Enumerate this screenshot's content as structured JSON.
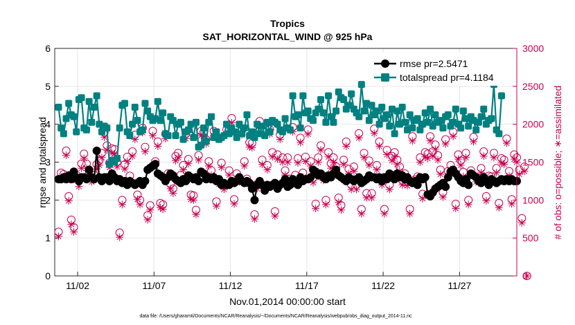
{
  "chart_data": {
    "type": "line",
    "title": "Tropics",
    "subtitle": "SAT_HORIZONTAL_WIND @ 925 hPa",
    "xlabel": "Nov.01,2014 00:00:00 start",
    "ylabel_left": "rmse and totalspread",
    "ylabel_right": "# of obs: o=possible; ∗=assimilated",
    "footnote": "data file: /Users/gharamti/Documents/NCAR/Reanalysis/~/Documents/NCAR/Reanalysis/webpub/obs_diag_output_2014-11.nc",
    "xlim": [
      0.0,
      30.25
    ],
    "ylim_left": [
      0,
      6
    ],
    "ylim_right": [
      0,
      3000
    ],
    "xticks": [
      1.5,
      6.5,
      11.5,
      16.5,
      21.5,
      26.5
    ],
    "xtick_labels": [
      "11/02",
      "11/07",
      "11/12",
      "11/17",
      "11/22",
      "11/27"
    ],
    "yticks_left": [
      "0",
      "1",
      "2",
      "3",
      "4",
      "5",
      "6"
    ],
    "yticks_right": [
      "0",
      "500",
      "1000",
      "1500",
      "2000",
      "2500",
      "3000"
    ],
    "legend": [
      {
        "label": "rmse pr=2.5471",
        "color": "#000000"
      },
      {
        "label": "totalspread pr=4.1184",
        "color": "#008080"
      }
    ],
    "colors": {
      "rmse": "#000000",
      "spread": "#008080",
      "obs": "#c8004f",
      "right_axis": "#c8004f"
    },
    "rmse": [
      2.55,
      2.55,
      2.6,
      2.55,
      2.65,
      2.55,
      2.75,
      2.6,
      2.5,
      2.6,
      2.6,
      2.55,
      2.8,
      2.6,
      2.55,
      3.3,
      2.6,
      2.5,
      2.6,
      2.6,
      2.5,
      2.7,
      2.6,
      2.5,
      2.55,
      2.45,
      2.5,
      2.4,
      2.5,
      2.45,
      2.4,
      2.45,
      2.5,
      2.4,
      2.5,
      2.8,
      2.85,
      2.9,
      2.95,
      2.7,
      2.65,
      2.6,
      2.5,
      2.6,
      2.7,
      2.65,
      2.55,
      2.5,
      2.45,
      2.55,
      2.5,
      2.65,
      2.6,
      2.55,
      2.6,
      2.5,
      2.75,
      2.7,
      2.55,
      2.6,
      2.55,
      2.6,
      2.5,
      2.55,
      2.4,
      2.45,
      2.4,
      2.4,
      2.5,
      2.45,
      2.5,
      2.6,
      2.5,
      2.45,
      2.5,
      2.45,
      2.3,
      2.0,
      2.4,
      2.5,
      2.4,
      2.25,
      2.4,
      2.35,
      2.4,
      2.45,
      2.3,
      2.4,
      2.45,
      2.55,
      2.35,
      2.4,
      2.55,
      2.45,
      2.4,
      2.6,
      2.5,
      2.55,
      2.55,
      2.6,
      2.8,
      2.75,
      2.65,
      2.7,
      2.6,
      2.55,
      2.65,
      2.6,
      2.7,
      2.8,
      2.65,
      2.6,
      2.55,
      2.5,
      2.6,
      2.55,
      2.5,
      2.55,
      2.6,
      2.45,
      2.5,
      2.55,
      2.65,
      2.6,
      2.6,
      2.55,
      2.6,
      2.5,
      2.6,
      2.55,
      2.7,
      2.65,
      2.55,
      2.7,
      2.6,
      2.65,
      2.55,
      2.6,
      2.5,
      2.45,
      2.5,
      2.4,
      2.6,
      2.55,
      2.6,
      2.15,
      2.1,
      2.2,
      2.3,
      2.35,
      2.4,
      2.45,
      2.35,
      2.6,
      2.75,
      2.8,
      2.7,
      2.6,
      2.5,
      2.45,
      2.55,
      2.4,
      2.7,
      2.65,
      2.6,
      2.5,
      2.45,
      2.6,
      2.5,
      2.4,
      2.55,
      2.5,
      2.45,
      2.5,
      2.55,
      2.5,
      2.55,
      2.5,
      2.55,
      2.5,
      2.5
    ],
    "totalspread": [
      4.45,
      3.9,
      3.75,
      4.15,
      4.55,
      4.25,
      4.2,
      3.8,
      4.65,
      4.7,
      3.9,
      3.85,
      4.6,
      4.05,
      4.45,
      4.75,
      4.0,
      3.8,
      3.95,
      3.9,
      2.95,
      3.05,
      3.0,
      3.1,
      3.9,
      4.5,
      4.55,
      3.8,
      3.7,
      4.0,
      4.45,
      4.1,
      3.8,
      3.85,
      4.55,
      4.35,
      4.2,
      4.1,
      4.15,
      4.6,
      4.1,
      4.3,
      3.75,
      3.7,
      4.2,
      4.1,
      3.7,
      4.0,
      4.05,
      3.6,
      3.8,
      3.85,
      4.0,
      3.65,
      4.05,
      3.4,
      3.45,
      3.9,
      3.55,
      4.05,
      4.2,
      3.65,
      3.8,
      3.6,
      3.65,
      3.7,
      4.0,
      3.75,
      3.9,
      3.8,
      3.65,
      4.0,
      3.75,
      3.9,
      4.25,
      3.7,
      3.8,
      3.65,
      4.0,
      3.75,
      3.95,
      3.7,
      4.05,
      3.8,
      4.1,
      4.05,
      4.0,
      3.85,
      3.8,
      4.15,
      3.9,
      3.85,
      4.75,
      4.2,
      4.25,
      3.9,
      4.75,
      4.3,
      4.35,
      4.15,
      4.1,
      4.3,
      4.4,
      4.65,
      4.3,
      4.05,
      4.75,
      4.2,
      4.05,
      4.35,
      4.85,
      4.7,
      4.65,
      4.4,
      4.5,
      4.8,
      4.4,
      4.3,
      4.2,
      5.05,
      4.35,
      4.55,
      4.1,
      4.5,
      4.25,
      4.35,
      4.0,
      4.45,
      4.15,
      4.25,
      3.95,
      4.4,
      3.75,
      4.35,
      4.0,
      4.45,
      4.05,
      3.85,
      4.25,
      3.9,
      4.1,
      4.15,
      3.85,
      4.0,
      4.3,
      4.05,
      4.4,
      3.95,
      4.25,
      4.05,
      4.1,
      3.9,
      4.2,
      4.25,
      3.95,
      4.05,
      4.4,
      4.0,
      3.9,
      4.35,
      4.15,
      3.95,
      4.2,
      4.1,
      3.85,
      4.05,
      4.2,
      4.4,
      4.0,
      4.1,
      4.15,
      5.05,
      3.85,
      3.75,
      4.75
    ],
    "obs_possible": [
      580,
      1360,
      1340,
      1650,
      1050,
      740,
      640,
      1330,
      1250,
      1480,
      1610,
      1480,
      1380,
      1300,
      1330,
      1470,
      1520,
      1620,
      1890,
      1720,
      1490,
      1680,
      1670,
      1500,
      570,
      1000,
      1470,
      1570,
      1320,
      1640,
      1860,
      1070,
      1000,
      1950,
      1700,
      800,
      930,
      1910,
      1510,
      1770,
      960,
      940,
      1870,
      1350,
      1210,
      1150,
      1580,
      1620,
      1330,
      1460,
      1870,
      1540,
      1070,
      1060,
      870,
      1590,
      1910,
      1900,
      1800,
      1510,
      1390,
      1910,
      980,
      1270,
      1490,
      1200,
      1930,
      1390,
      2080,
      1010,
      1350,
      1300,
      1920,
      1510,
      1280,
      1760,
      1750,
      810,
      1210,
      2040,
      1530,
      1180,
      1460,
      1930,
      1630,
      850,
      1600,
      1860,
      1560,
      1390,
      1560,
      1280,
      1960,
      1330,
      1550,
      1820,
      1360,
      1570,
      1930,
      1510,
      1290,
      950,
      1560,
      1720,
      1320,
      1000,
      1630,
      1480,
      1560,
      1440,
      1030,
      930,
      1530,
      1770,
      1410,
      1200,
      1440,
      1200,
      1880,
      880,
      1620,
      1090,
      1520,
      1090,
      1940,
      1460,
      1770,
      1260,
      880,
      1660,
      1200,
      1580,
      1630,
      1530,
      1440,
      1260,
      1350,
      1250,
      880,
      1840,
      1270,
      1310,
      1560,
      1080,
      1630,
      1610,
      1840,
      1640,
      1730,
      1590,
      1400,
      1100,
      1800,
      1380,
      1460,
      1900,
      950,
      1600,
      1520,
      1370,
      1620,
      1000,
      1390,
      1830,
      1300,
      1290,
      1420,
      1640,
      1050,
      1320,
      1310,
      1620,
      1420,
      960,
      1550,
      1530,
      1810,
      1380,
      1010,
      1600,
      1560,
      1400,
      760,
      1440,
      0
    ],
    "obs_assimilated": [
      520,
      1270,
      1310,
      1590,
      990,
      680,
      580,
      1260,
      1180,
      1420,
      1550,
      1420,
      1310,
      1240,
      1270,
      1410,
      1460,
      1560,
      1830,
      1660,
      1430,
      1620,
      1610,
      1440,
      510,
      940,
      1410,
      1510,
      1260,
      1580,
      1800,
      1010,
      940,
      1890,
      1640,
      740,
      870,
      1850,
      1450,
      1710,
      900,
      880,
      1810,
      1290,
      1150,
      1090,
      1520,
      1560,
      1270,
      1400,
      1810,
      1480,
      1010,
      1000,
      810,
      1530,
      1850,
      1840,
      1740,
      1450,
      1330,
      1850,
      920,
      1210,
      1430,
      1140,
      1870,
      1330,
      2020,
      950,
      1290,
      1240,
      1860,
      1450,
      1220,
      1700,
      1690,
      750,
      1150,
      1980,
      1470,
      1120,
      1400,
      1870,
      1570,
      790,
      1540,
      1800,
      1500,
      1330,
      1500,
      1220,
      1900,
      1270,
      1490,
      1760,
      1300,
      1510,
      1870,
      1450,
      1230,
      890,
      1500,
      1660,
      1260,
      940,
      1570,
      1420,
      1500,
      1380,
      970,
      870,
      1470,
      1710,
      1350,
      1140,
      1380,
      1140,
      1820,
      820,
      1560,
      1030,
      1460,
      1030,
      1880,
      1400,
      1710,
      1200,
      820,
      1600,
      1140,
      1520,
      1570,
      1470,
      1380,
      1200,
      1290,
      1190,
      820,
      1780,
      1210,
      1250,
      1500,
      1020,
      1570,
      1550,
      1780,
      1580,
      1670,
      1530,
      1340,
      1040,
      1740,
      1320,
      1400,
      1840,
      890,
      1540,
      1460,
      1310,
      1560,
      940,
      1330,
      1770,
      1240,
      1230,
      1360,
      1580,
      990,
      1260,
      1250,
      1560,
      1360,
      900,
      1490,
      1470,
      1750,
      1320,
      950,
      1540,
      1500,
      1340,
      700,
      1380,
      0
    ]
  }
}
